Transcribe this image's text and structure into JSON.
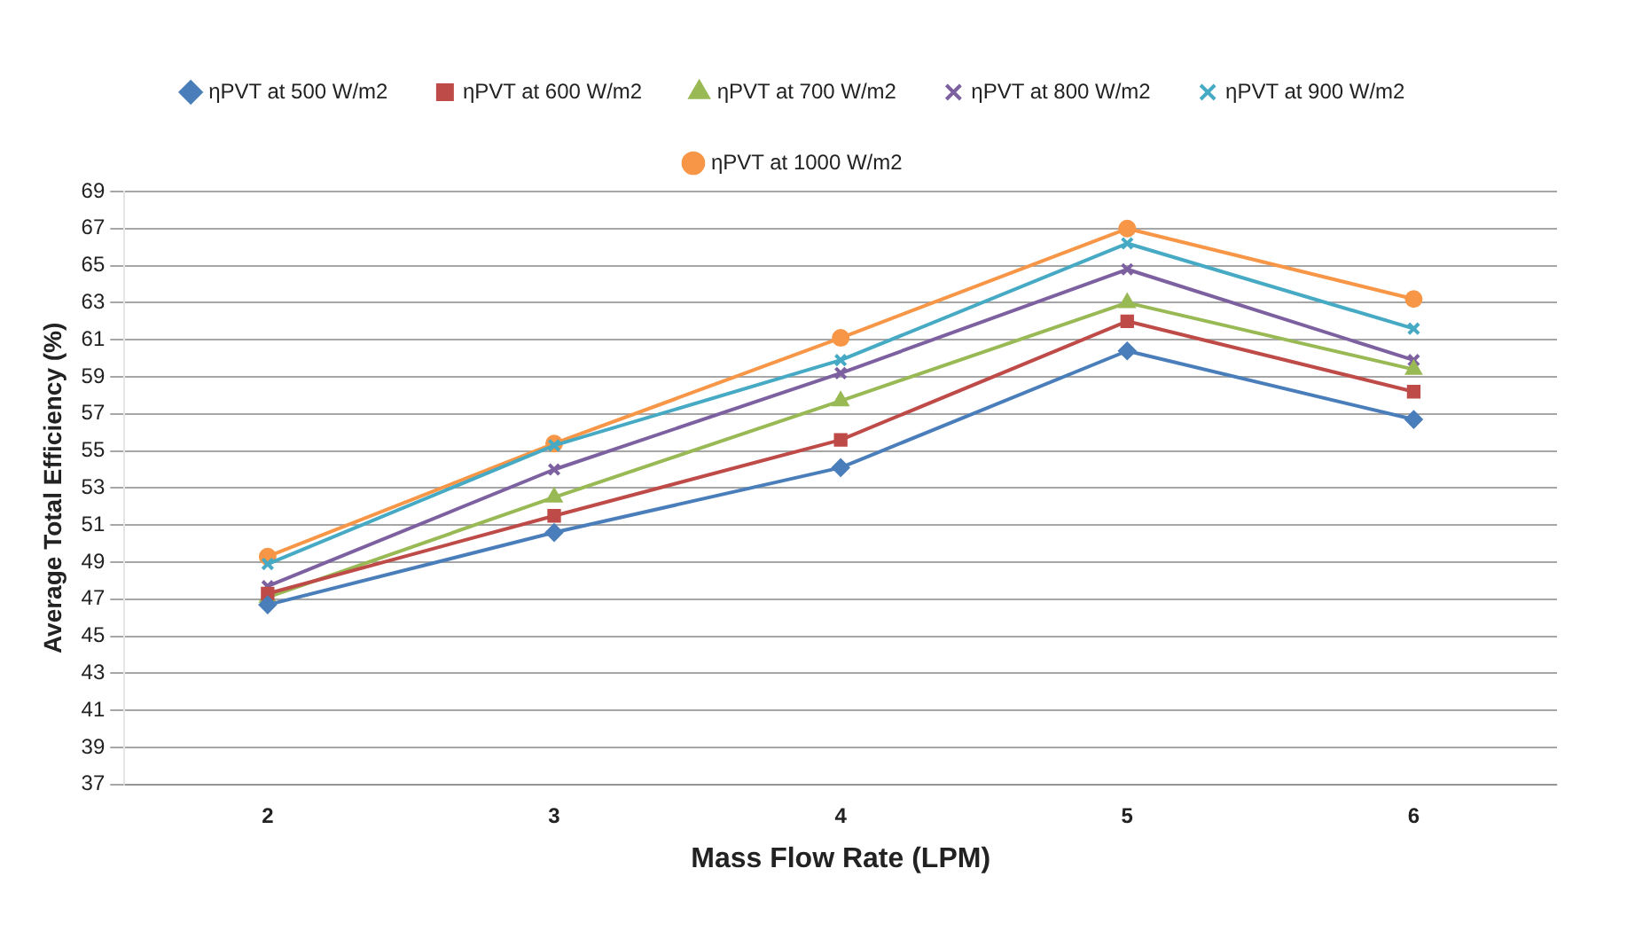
{
  "chart_data": {
    "type": "line",
    "xlabel": "Mass Flow Rate (LPM)",
    "ylabel": "Average Total Efficiency (%)",
    "categories": [
      "2",
      "3",
      "4",
      "5",
      "6"
    ],
    "ylim": [
      37,
      69
    ],
    "yticks": [
      37,
      39,
      41,
      43,
      45,
      47,
      49,
      51,
      53,
      55,
      57,
      59,
      61,
      63,
      65,
      67,
      69
    ],
    "grid": "y",
    "legend": "top",
    "series": [
      {
        "name": "ηPVT at 500 W/m2",
        "color": "#4a7ebb",
        "marker": "diamond",
        "values": [
          46.7,
          50.6,
          54.1,
          60.4,
          56.7
        ]
      },
      {
        "name": "ηPVT at 600 W/m2",
        "color": "#be4b48",
        "marker": "square",
        "values": [
          47.3,
          51.5,
          55.6,
          62.0,
          58.2
        ]
      },
      {
        "name": "ηPVT at 700 W/m2",
        "color": "#98b954",
        "marker": "triangle",
        "values": [
          47.1,
          52.5,
          57.7,
          63.0,
          59.4
        ]
      },
      {
        "name": "ηPVT at 800 W/m2",
        "color": "#7d60a0",
        "marker": "cross",
        "values": [
          47.7,
          54.0,
          59.2,
          64.8,
          59.9
        ]
      },
      {
        "name": "ηPVT at 900 W/m2",
        "color": "#46aac5",
        "marker": "cross",
        "values": [
          48.9,
          55.3,
          59.9,
          66.2,
          61.6
        ]
      },
      {
        "name": "ηPVT at 1000 W/m2",
        "color": "#f79646",
        "marker": "circle",
        "values": [
          49.3,
          55.4,
          61.1,
          67.0,
          63.2
        ]
      }
    ]
  }
}
